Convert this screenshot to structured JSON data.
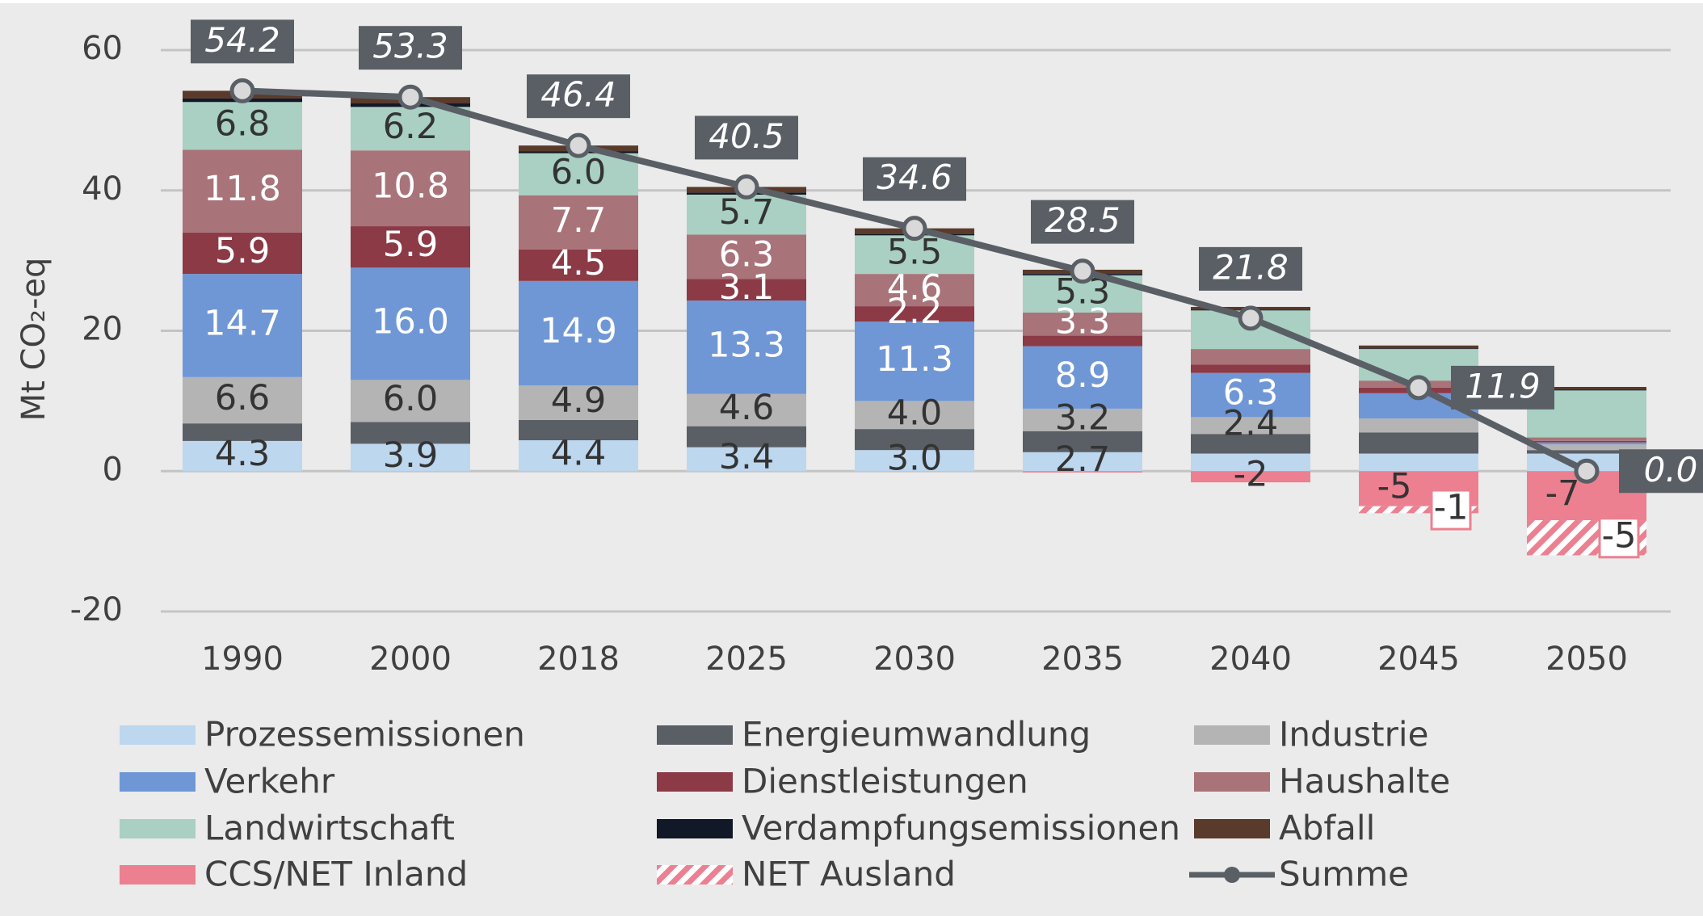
{
  "chart_data": {
    "type": "bar",
    "stacked": true,
    "y_label": "Mt CO₂-eq",
    "categories": [
      "1990",
      "2000",
      "2018",
      "2025",
      "2030",
      "2035",
      "2040",
      "2045",
      "2050"
    ],
    "ylim": [
      -20,
      60
    ],
    "yticks": [
      -20,
      0,
      20,
      40,
      60
    ],
    "grid": true,
    "legend": "bottom",
    "series": [
      {
        "name": "Prozessemissionen",
        "color": "#bdd7ee",
        "label_color": "#333333",
        "values": [
          4.3,
          3.9,
          4.4,
          3.4,
          3.0,
          2.7,
          2.5,
          2.5,
          2.5
        ],
        "value_labels": [
          "4.3",
          "3.9",
          "4.4",
          "3.4",
          "3.0",
          "2.7",
          null,
          null,
          null
        ]
      },
      {
        "name": "Energieumwandlung",
        "color": "#5a5f66",
        "values": [
          2.5,
          3.1,
          2.9,
          3.0,
          3.0,
          3.0,
          2.8,
          3.0,
          0.5
        ]
      },
      {
        "name": "Industrie",
        "color": "#b4b4b4",
        "label_color": "#333333",
        "values": [
          6.6,
          6.0,
          4.9,
          4.6,
          4.0,
          3.2,
          2.4,
          2.0,
          0.8
        ],
        "value_labels": [
          "6.6",
          "6.0",
          "4.9",
          "4.6",
          "4.0",
          "3.2",
          "2.4",
          null,
          null
        ]
      },
      {
        "name": "Verkehr",
        "color": "#6f97d6",
        "label_color": "#ffffff",
        "values": [
          14.7,
          16.0,
          14.9,
          13.3,
          11.3,
          8.9,
          6.3,
          3.6,
          0.3
        ],
        "value_labels": [
          "14.7",
          "16.0",
          "14.9",
          "13.3",
          "11.3",
          "8.9",
          "6.3",
          null,
          null
        ]
      },
      {
        "name": "Dienstleistungen",
        "color": "#8b3a46",
        "label_color": "#ffffff",
        "values": [
          5.9,
          5.9,
          4.5,
          3.1,
          2.2,
          1.5,
          1.2,
          0.8,
          0.2
        ],
        "value_labels": [
          "5.9",
          "5.9",
          "4.5",
          "3.1",
          "2.2",
          null,
          null,
          null,
          null
        ]
      },
      {
        "name": "Haushalte",
        "color": "#a87379",
        "label_color": "#ffffff",
        "values": [
          11.8,
          10.8,
          7.7,
          6.3,
          4.6,
          3.3,
          2.2,
          1.0,
          0.5
        ],
        "value_labels": [
          "11.8",
          "10.8",
          "7.7",
          "6.3",
          "4.6",
          "3.3",
          null,
          null,
          null
        ]
      },
      {
        "name": "Landwirtschaft",
        "color": "#a9d0c2",
        "label_color": "#333333",
        "values": [
          6.8,
          6.2,
          6.0,
          5.7,
          5.5,
          5.3,
          5.5,
          4.5,
          6.7
        ],
        "value_labels": [
          "6.8",
          "6.2",
          "6.0",
          "5.7",
          "5.5",
          "5.3",
          null,
          null,
          null
        ]
      },
      {
        "name": "Verdampfungsemissionen",
        "color": "#111827",
        "values": [
          0.5,
          0.5,
          0.3,
          0.3,
          0.2,
          0.2,
          0.1,
          0.1,
          0.1
        ]
      },
      {
        "name": "Abfall",
        "color": "#5a3a2a",
        "values": [
          1.1,
          0.9,
          0.8,
          0.8,
          0.8,
          0.6,
          0.4,
          0.4,
          0.4
        ]
      },
      {
        "name": "CCS/NET Inland",
        "color": "#ec8090",
        "label_color": "#333333",
        "values": [
          0,
          0,
          0,
          0,
          0,
          -0.2,
          -1.6,
          -5,
          -7
        ],
        "value_labels": [
          null,
          null,
          null,
          null,
          null,
          null,
          "-2",
          "-5",
          "-7"
        ]
      },
      {
        "name": "NET Ausland",
        "color": "#ec8090",
        "pattern": "hatch",
        "label_color": "#333333",
        "values": [
          0,
          0,
          0,
          0,
          0,
          0,
          0,
          -1,
          -5
        ],
        "value_labels": [
          null,
          null,
          null,
          null,
          null,
          null,
          null,
          "-1",
          "-5"
        ]
      },
      {
        "name": "Summe",
        "type": "line",
        "color": "#5a5f66",
        "values": [
          54.2,
          53.3,
          46.4,
          40.5,
          34.6,
          28.5,
          21.8,
          11.9,
          0.0
        ],
        "value_labels": [
          "54.2",
          "53.3",
          "46.4",
          "40.5",
          "34.6",
          "28.5",
          "21.8",
          "11.9",
          "0.0"
        ]
      }
    ]
  }
}
